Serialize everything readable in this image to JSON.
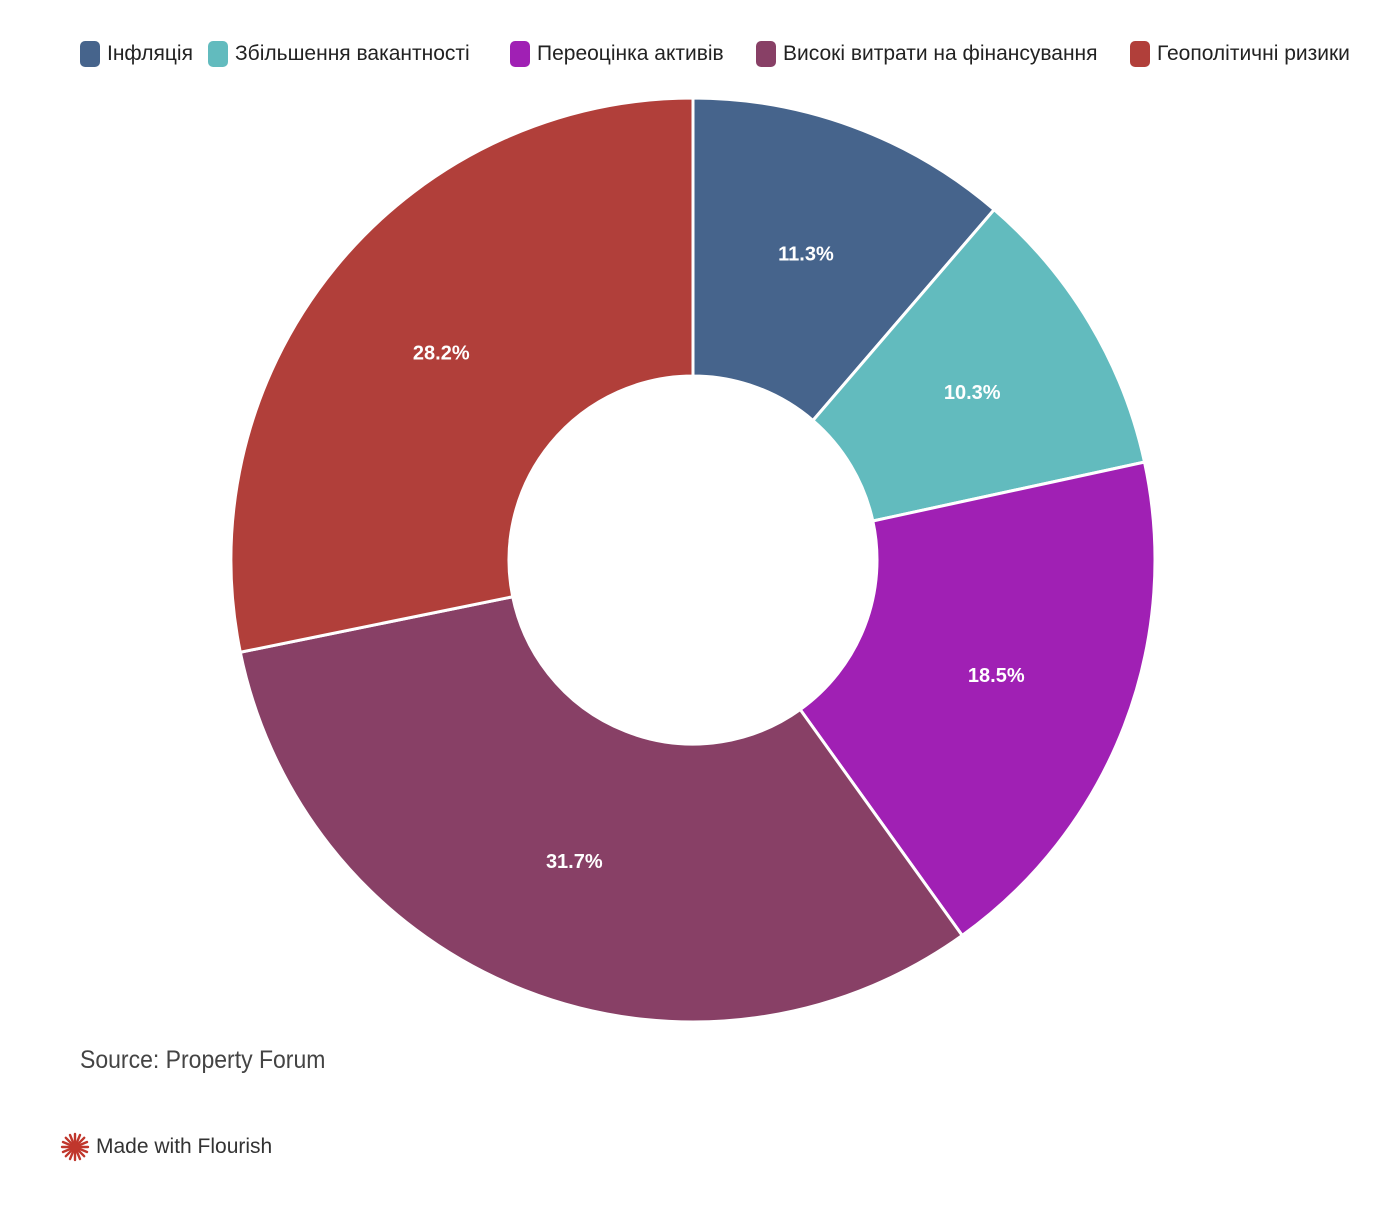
{
  "chart_data": {
    "type": "pie",
    "variant": "donut",
    "title": "",
    "start_angle_deg": 0,
    "direction": "clockwise",
    "legend_position": "top",
    "slices": [
      {
        "label": "Інфляція",
        "value": 11.3,
        "value_label": "11.3%",
        "color": "#46648c"
      },
      {
        "label": "Збільшення вакантності",
        "value": 10.3,
        "value_label": "10.3%",
        "color": "#62bbbe"
      },
      {
        "label": "Переоцінка активів",
        "value": 18.5,
        "value_label": "18.5%",
        "color": "#a020b4"
      },
      {
        "label": "Високі витрати на фінансування",
        "value": 31.7,
        "value_label": "31.7%",
        "color": "#884066"
      },
      {
        "label": "Геополітичні ризики",
        "value": 28.2,
        "value_label": "28.2%",
        "color": "#b13f3a"
      }
    ]
  },
  "footer": {
    "source": "Source: Property Forum",
    "made_with": "Made with Flourish",
    "made_with_icon": "flourish-burst-icon",
    "made_with_icon_color": "#c0362c"
  }
}
